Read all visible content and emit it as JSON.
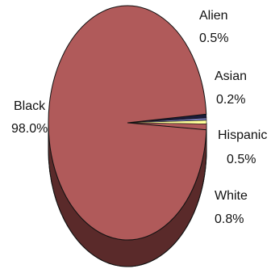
{
  "chart_data": {
    "type": "pie",
    "title": "",
    "slices": [
      {
        "label": "Black",
        "value_label": "98.0%",
        "value": 98.0,
        "color": "#b05a5a"
      },
      {
        "label": "Alien",
        "value_label": "0.5%",
        "value": 0.5,
        "color": "#1c1c3a"
      },
      {
        "label": "Asian",
        "value_label": "0.2%",
        "value": 0.2,
        "color": "#7a7ab8"
      },
      {
        "label": "Hispanic",
        "value_label": "0.5%",
        "value": 0.5,
        "color": "#ffff99"
      },
      {
        "label": "White",
        "value_label": "0.8%",
        "value": 0.8,
        "color": "#b05a5a"
      }
    ],
    "legend": "none",
    "style": "3d-tilted"
  }
}
